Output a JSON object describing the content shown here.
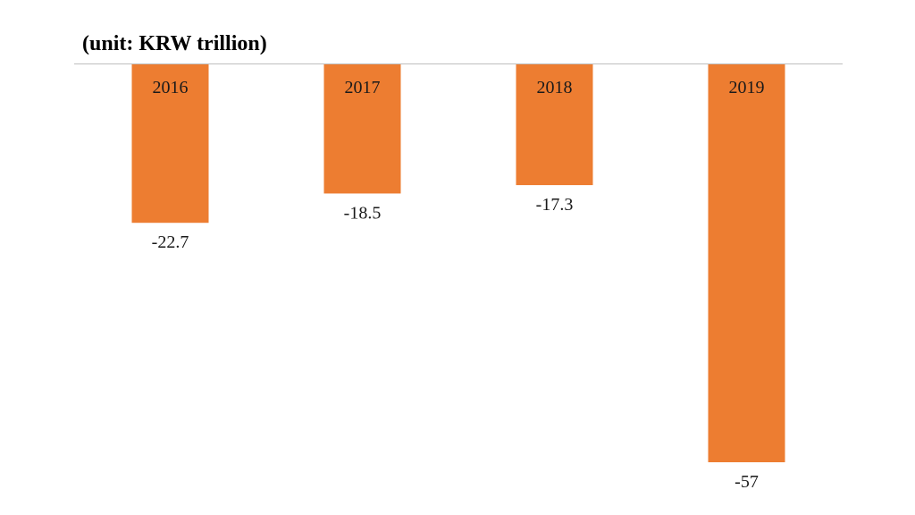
{
  "unit_label": "(unit: KRW trillion)",
  "colors": {
    "bar": "#ED7D31",
    "axis": "#BFBFBF",
    "text": "#1a1a1a"
  },
  "chart_data": {
    "type": "bar",
    "title": "",
    "subtitle": "(unit: KRW trillion)",
    "xlabel": "",
    "ylabel": "",
    "categories": [
      "2016",
      "2017",
      "2018",
      "2019"
    ],
    "values": [
      -22.7,
      -18.5,
      -17.3,
      -57
    ],
    "value_labels": [
      "-22.7",
      "-18.5",
      "-17.3",
      "-57"
    ],
    "ylim": [
      -57,
      0
    ],
    "grid": false,
    "legend": "none",
    "category_labels_position": "inside-top-of-bar"
  }
}
